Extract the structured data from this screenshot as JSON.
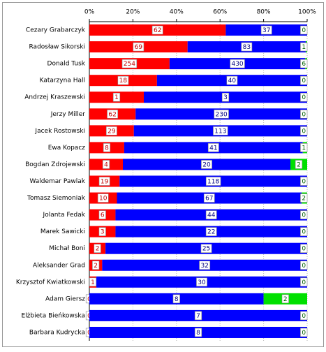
{
  "chart_data": {
    "type": "bar",
    "orientation": "horizontal",
    "stacked": "percent",
    "categories": [
      "Cezary Grabarczyk",
      "Radosław Sikorski",
      "Donald Tusk",
      "Katarzyna Hall",
      "Andrzej Kraszewski",
      "Jerzy Miller",
      "Jacek Rostowski",
      "Ewa Kopacz",
      "Bogdan Zdrojewski",
      "Waldemar Pawlak",
      "Tomasz Siemoniak",
      "Jolanta Fedak",
      "Marek Sawicki",
      "Michał Boni",
      "Aleksander Grad",
      "Krzysztof Kwiatkowski",
      "Adam Giersz",
      "Elżbieta Bieńkowska",
      "Barbara Kudrycka"
    ],
    "series": [
      {
        "color": "#ff0000",
        "values": [
          62,
          69,
          254,
          18,
          1,
          62,
          29,
          8,
          4,
          19,
          10,
          6,
          3,
          2,
          2,
          1,
          0,
          0,
          0
        ]
      },
      {
        "color": "#0000ff",
        "values": [
          37,
          83,
          430,
          40,
          3,
          230,
          113,
          41,
          20,
          118,
          67,
          44,
          22,
          25,
          32,
          30,
          8,
          7,
          8
        ]
      },
      {
        "color": "#00e000",
        "values": [
          0,
          1,
          6,
          0,
          0,
          0,
          0,
          1,
          2,
          0,
          2,
          0,
          0,
          0,
          0,
          0,
          2,
          0,
          0
        ]
      }
    ],
    "xlim": [
      0,
      100
    ],
    "xticks": [
      {
        "value": 0,
        "label": "0%"
      },
      {
        "value": 20,
        "label": "20%"
      },
      {
        "value": 40,
        "label": "40%"
      },
      {
        "value": 60,
        "label": "60%"
      },
      {
        "value": 80,
        "label": "80%"
      },
      {
        "value": 100,
        "label": "100%"
      }
    ],
    "grid": true
  }
}
